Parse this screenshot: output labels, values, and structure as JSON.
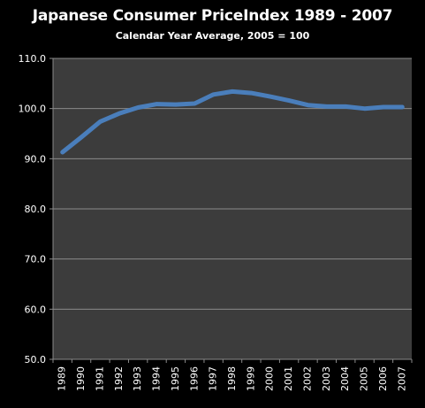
{
  "chart_data": {
    "type": "line",
    "title": "Japanese Consumer PriceIndex 1989 - 2007",
    "subtitle": "Calendar Year Average, 2005 = 100",
    "xlabel": "",
    "ylabel": "",
    "categories": [
      "1989",
      "1990",
      "1991",
      "1992",
      "1993",
      "1994",
      "1995",
      "1996",
      "1997",
      "1998",
      "1999",
      "2000",
      "2001",
      "2002",
      "2003",
      "2004",
      "2005",
      "2006",
      "2007"
    ],
    "series": [
      {
        "values": [
          91.3,
          94.3,
          97.4,
          99.0,
          100.2,
          100.9,
          100.8,
          101.0,
          102.8,
          103.4,
          103.1,
          102.4,
          101.6,
          100.7,
          100.4,
          100.4,
          100.0,
          100.3,
          100.3
        ]
      }
    ],
    "ylim": [
      50.0,
      110.0
    ],
    "yticks": [
      "50.0",
      "60.0",
      "70.0",
      "80.0",
      "90.0",
      "100.0",
      "110.0"
    ],
    "grid": true,
    "colors": {
      "background": "#000000",
      "plot_area": "#3c3c3c",
      "gridline": "#8a8a8a",
      "line": "#4a7ebb",
      "text": "#ffffff"
    }
  }
}
